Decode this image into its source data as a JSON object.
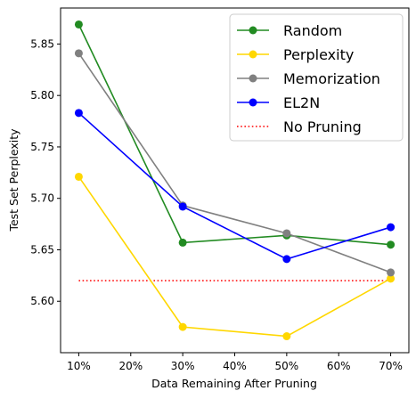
{
  "chart_data": {
    "type": "line",
    "xlabel": "Data Remaining After Pruning",
    "ylabel": "Test Set Perplexity",
    "x_ticks": [
      "10%",
      "20%",
      "30%",
      "40%",
      "50%",
      "60%",
      "70%"
    ],
    "x_tick_values": [
      10,
      20,
      30,
      40,
      50,
      60,
      70
    ],
    "y_ticks": [
      "5.60",
      "5.65",
      "5.70",
      "5.75",
      "5.80",
      "5.85"
    ],
    "y_tick_values": [
      5.6,
      5.65,
      5.7,
      5.75,
      5.8,
      5.85
    ],
    "xlim": [
      6.5,
      73.5
    ],
    "ylim": [
      5.55,
      5.885
    ],
    "x": [
      10,
      30,
      50,
      70
    ],
    "series": [
      {
        "name": "Random",
        "color": "#228B22",
        "values": [
          5.869,
          5.657,
          5.664,
          5.655
        ]
      },
      {
        "name": "Perplexity",
        "color": "#FFD700",
        "values": [
          5.721,
          5.575,
          5.566,
          5.622
        ]
      },
      {
        "name": "Memorization",
        "color": "#808080",
        "values": [
          5.841,
          5.693,
          5.666,
          5.628
        ]
      },
      {
        "name": "EL2N",
        "color": "#0000FF",
        "values": [
          5.783,
          5.692,
          5.641,
          5.672
        ]
      }
    ],
    "baseline": {
      "name": "No Pruning",
      "color": "#FF0000",
      "value": 5.62,
      "style": "dotted"
    },
    "legend_position": "top-right",
    "grid": false
  }
}
